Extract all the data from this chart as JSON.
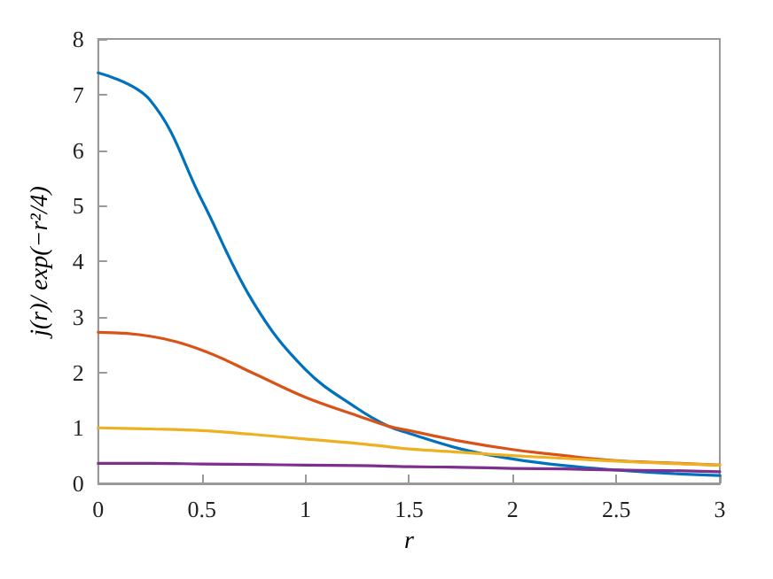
{
  "chart_data": {
    "type": "line",
    "xlabel": "r",
    "ylabel": "j(r)/ exp(−r²/4)",
    "xlim": [
      0,
      3
    ],
    "ylim": [
      0,
      8
    ],
    "xticks": [
      0,
      0.5,
      1,
      1.5,
      2,
      2.5,
      3
    ],
    "yticks": [
      0,
      1,
      2,
      3,
      4,
      5,
      6,
      7,
      8
    ],
    "grid": false,
    "marker": "none",
    "line_style": "solid",
    "x": [
      0,
      0.25,
      0.5,
      0.75,
      1,
      1.25,
      1.4,
      1.5,
      1.75,
      2,
      2.25,
      2.5,
      2.75,
      3
    ],
    "series": [
      {
        "color": "#0072bd",
        "values": [
          7.39,
          6.9,
          5.1,
          3.25,
          2.05,
          1.35,
          1.03,
          0.9,
          0.62,
          0.44,
          0.32,
          0.24,
          0.18,
          0.14
        ]
      },
      {
        "color": "#d95319",
        "values": [
          2.72,
          2.65,
          2.4,
          1.98,
          1.55,
          1.22,
          1.03,
          0.95,
          0.76,
          0.61,
          0.5,
          0.41,
          0.37,
          0.33
        ]
      },
      {
        "color": "#edb120",
        "values": [
          1.0,
          0.98,
          0.95,
          0.88,
          0.8,
          0.72,
          0.66,
          0.62,
          0.56,
          0.5,
          0.45,
          0.4,
          0.36,
          0.33
        ]
      },
      {
        "color": "#7e2f8e",
        "values": [
          0.36,
          0.36,
          0.35,
          0.34,
          0.33,
          0.32,
          0.31,
          0.3,
          0.29,
          0.27,
          0.26,
          0.24,
          0.23,
          0.21
        ]
      }
    ]
  }
}
